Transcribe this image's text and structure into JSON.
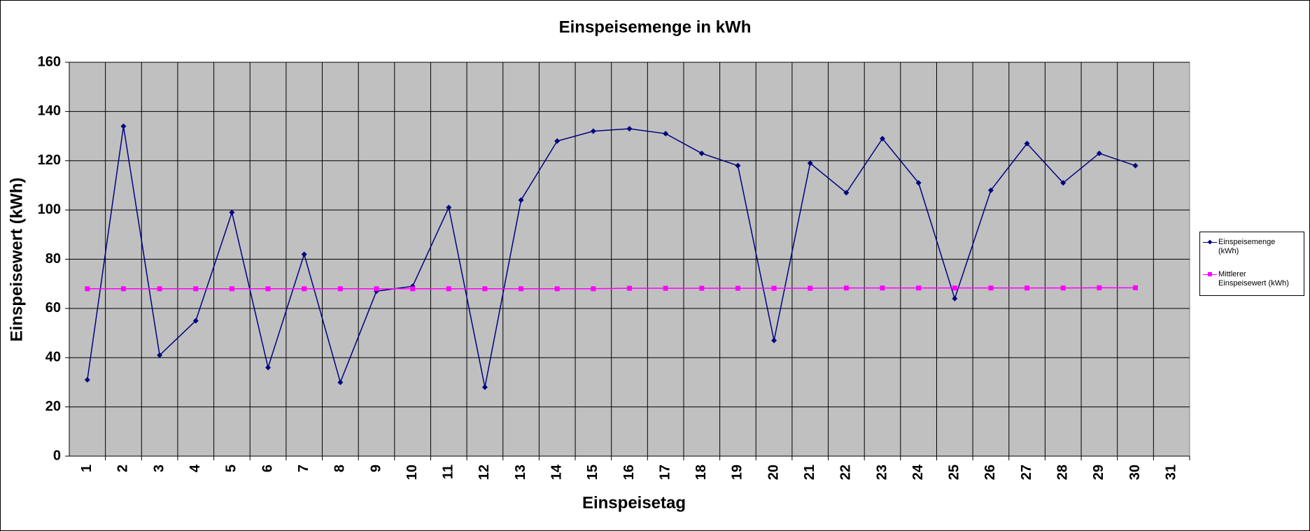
{
  "chart_data": {
    "type": "line",
    "title": "Einspeisemenge in kWh",
    "xlabel": "Einspeisetag",
    "ylabel": "Einspeisewert  (kWh)",
    "categories": [
      "1",
      "2",
      "3",
      "4",
      "5",
      "6",
      "7",
      "8",
      "9",
      "10",
      "11",
      "12",
      "13",
      "14",
      "15",
      "16",
      "17",
      "18",
      "19",
      "20",
      "21",
      "22",
      "23",
      "24",
      "25",
      "26",
      "27",
      "28",
      "29",
      "30",
      "31"
    ],
    "series": [
      {
        "name": "Einspeisemenge (kWh)",
        "color": "#000080",
        "marker": "diamond",
        "values": [
          31,
          134,
          41,
          55,
          99,
          36,
          82,
          30,
          67,
          69,
          101,
          28,
          104,
          128,
          132,
          133,
          131,
          123,
          118,
          47,
          119,
          107,
          129,
          111,
          64,
          108,
          127,
          111,
          123,
          118,
          null
        ]
      },
      {
        "name": "Mittlerer Einspeisewert (kWh)",
        "color": "#ff00ff",
        "marker": "square",
        "values": [
          68,
          68,
          68,
          68,
          68,
          68,
          68,
          68,
          68,
          68,
          68,
          68,
          68,
          68,
          68,
          68.2,
          68.2,
          68.2,
          68.2,
          68.2,
          68.2,
          68.3,
          68.3,
          68.3,
          68.3,
          68.3,
          68.3,
          68.3,
          68.4,
          68.4,
          null
        ]
      }
    ],
    "ylim": [
      0,
      160
    ],
    "yticks": [
      0,
      20,
      40,
      60,
      80,
      100,
      120,
      140,
      160
    ],
    "grid": true,
    "plot_background": "#c0c0c0",
    "legend": "right"
  }
}
